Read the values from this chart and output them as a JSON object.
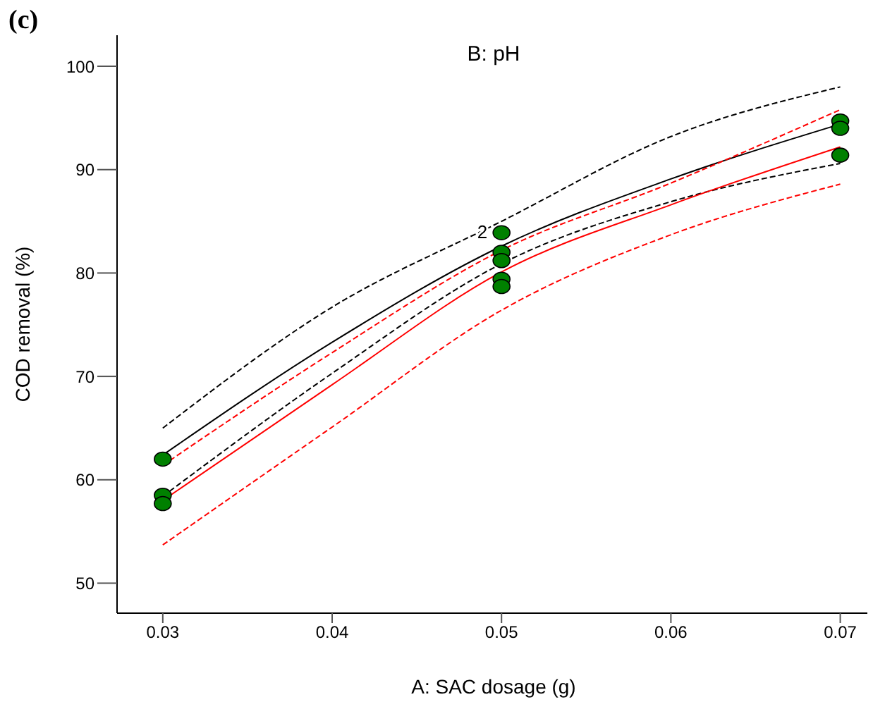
{
  "chart_data": {
    "type": "line",
    "title": "B: pH",
    "xlabel": "A: SAC dosage (g)",
    "ylabel": "COD removal (%)",
    "annotations": [
      "(c)",
      {
        "text": "2",
        "x": 0.05,
        "y": 84
      }
    ],
    "xlim": [
      0.0273,
      0.0716
    ],
    "ylim": [
      47.1,
      103
    ],
    "xticks": [
      0.03,
      0.04,
      0.05,
      0.06,
      0.07
    ],
    "yticks": [
      50,
      60,
      70,
      80,
      90,
      100
    ],
    "series": [
      {
        "color": "#000000",
        "line_style": "dashed",
        "marker": "none",
        "x": [
          0.03,
          0.04,
          0.05,
          0.06,
          0.07
        ],
        "values": [
          65.0,
          76.7,
          85.0,
          93.2,
          98.0
        ]
      },
      {
        "color": "#000000",
        "line_style": "solid",
        "marker": "none",
        "x": [
          0.03,
          0.04,
          0.05,
          0.06,
          0.07
        ],
        "values": [
          62.4,
          73.3,
          82.6,
          89.1,
          94.4
        ]
      },
      {
        "color": "#000000",
        "line_style": "dashed",
        "marker": "none",
        "x": [
          0.03,
          0.04,
          0.05,
          0.06,
          0.07
        ],
        "values": [
          58.4,
          70.3,
          80.9,
          86.9,
          90.6
        ]
      },
      {
        "color": "#ff0000",
        "line_style": "dashed",
        "marker": "none",
        "x": [
          0.03,
          0.04,
          0.05,
          0.06,
          0.07
        ],
        "values": [
          61.4,
          72.3,
          82.2,
          88.7,
          95.8
        ]
      },
      {
        "color": "#ff0000",
        "line_style": "solid",
        "marker": "none",
        "x": [
          0.03,
          0.04,
          0.05,
          0.06,
          0.07
        ],
        "values": [
          58.0,
          69.2,
          80.1,
          86.6,
          92.2
        ]
      },
      {
        "color": "#ff0000",
        "line_style": "dashed",
        "marker": "none",
        "x": [
          0.03,
          0.04,
          0.05,
          0.06,
          0.07
        ],
        "values": [
          53.7,
          65.1,
          76.4,
          83.7,
          88.6
        ]
      },
      {
        "type": "scatter",
        "color": "#008000",
        "marker": "circle",
        "x": [
          0.03,
          0.03,
          0.03,
          0.05,
          0.05,
          0.05,
          0.05,
          0.05,
          0.07,
          0.07,
          0.07
        ],
        "values": [
          62.0,
          58.5,
          57.7,
          83.9,
          82.0,
          81.2,
          79.4,
          78.7,
          94.7,
          94.0,
          91.4
        ]
      }
    ]
  }
}
